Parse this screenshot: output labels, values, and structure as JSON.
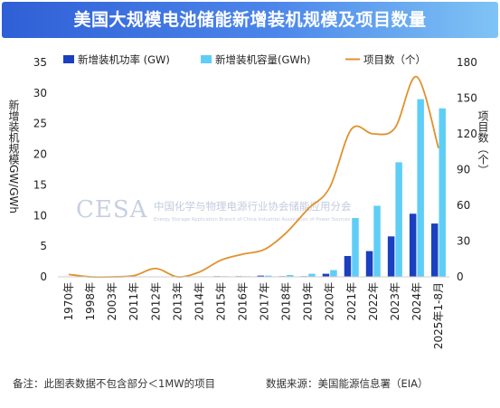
{
  "title": "美国大规模电池储能新增装机规模及项目数量",
  "footer": {
    "note": "备注：此图表数据不包含部分＜1MW的项目",
    "source": "数据来源：美国能源信息署（EIA）"
  },
  "watermark": {
    "logo": "CESA",
    "name_cn": "中国化学与物理电源行业协会储能应用分会",
    "name_en": "Energy Storage Application Branch of China Industrial Association of Power Sources"
  },
  "colors": {
    "power_bar": "#1a3fbf",
    "capacity_bar": "#5fcef7",
    "projects_line": "#e0922e",
    "axis_text": "#222222",
    "grid": "#e6e6e6"
  },
  "chart_data": {
    "type": "bar",
    "categories": [
      "1970年",
      "1998年",
      "2003年",
      "2011年",
      "2012年",
      "2013年",
      "2014年",
      "2015年",
      "2016年",
      "2017年",
      "2018年",
      "2019年",
      "2020年",
      "2021年",
      "2022年",
      "2023年",
      "2024年",
      "2025年1-8月"
    ],
    "series": [
      {
        "name": "新增装机功率 (GW)",
        "type": "bar",
        "axis": "left",
        "values": [
          0,
          0,
          0,
          0,
          0,
          0,
          0,
          0.1,
          0.1,
          0.2,
          0.1,
          0.1,
          0.5,
          3.4,
          4.2,
          6.6,
          10.3,
          8.7
        ]
      },
      {
        "name": "新增装机容量(GWh)",
        "type": "bar",
        "axis": "left",
        "values": [
          0,
          0,
          0,
          0,
          0,
          0,
          0,
          0.1,
          0.1,
          0.2,
          0.3,
          0.5,
          1.1,
          9.6,
          11.6,
          18.7,
          29.0,
          27.5
        ]
      },
      {
        "name": "项目数（个）",
        "type": "line",
        "axis": "right",
        "values": [
          2,
          0,
          0,
          1,
          7,
          0,
          4,
          14,
          19,
          23,
          37,
          57,
          75,
          124,
          120,
          125,
          168,
          108
        ]
      }
    ],
    "ylabel": "新增装机规模GW/GWh",
    "y2label": "项目数（个）",
    "ylim": [
      0,
      35
    ],
    "yticks": [
      0,
      5,
      10,
      15,
      20,
      25,
      30,
      35
    ],
    "y2lim": [
      0,
      180
    ],
    "y2ticks": [
      0,
      30,
      60,
      90,
      120,
      150,
      180
    ],
    "grid": false,
    "legend_position": "top"
  }
}
